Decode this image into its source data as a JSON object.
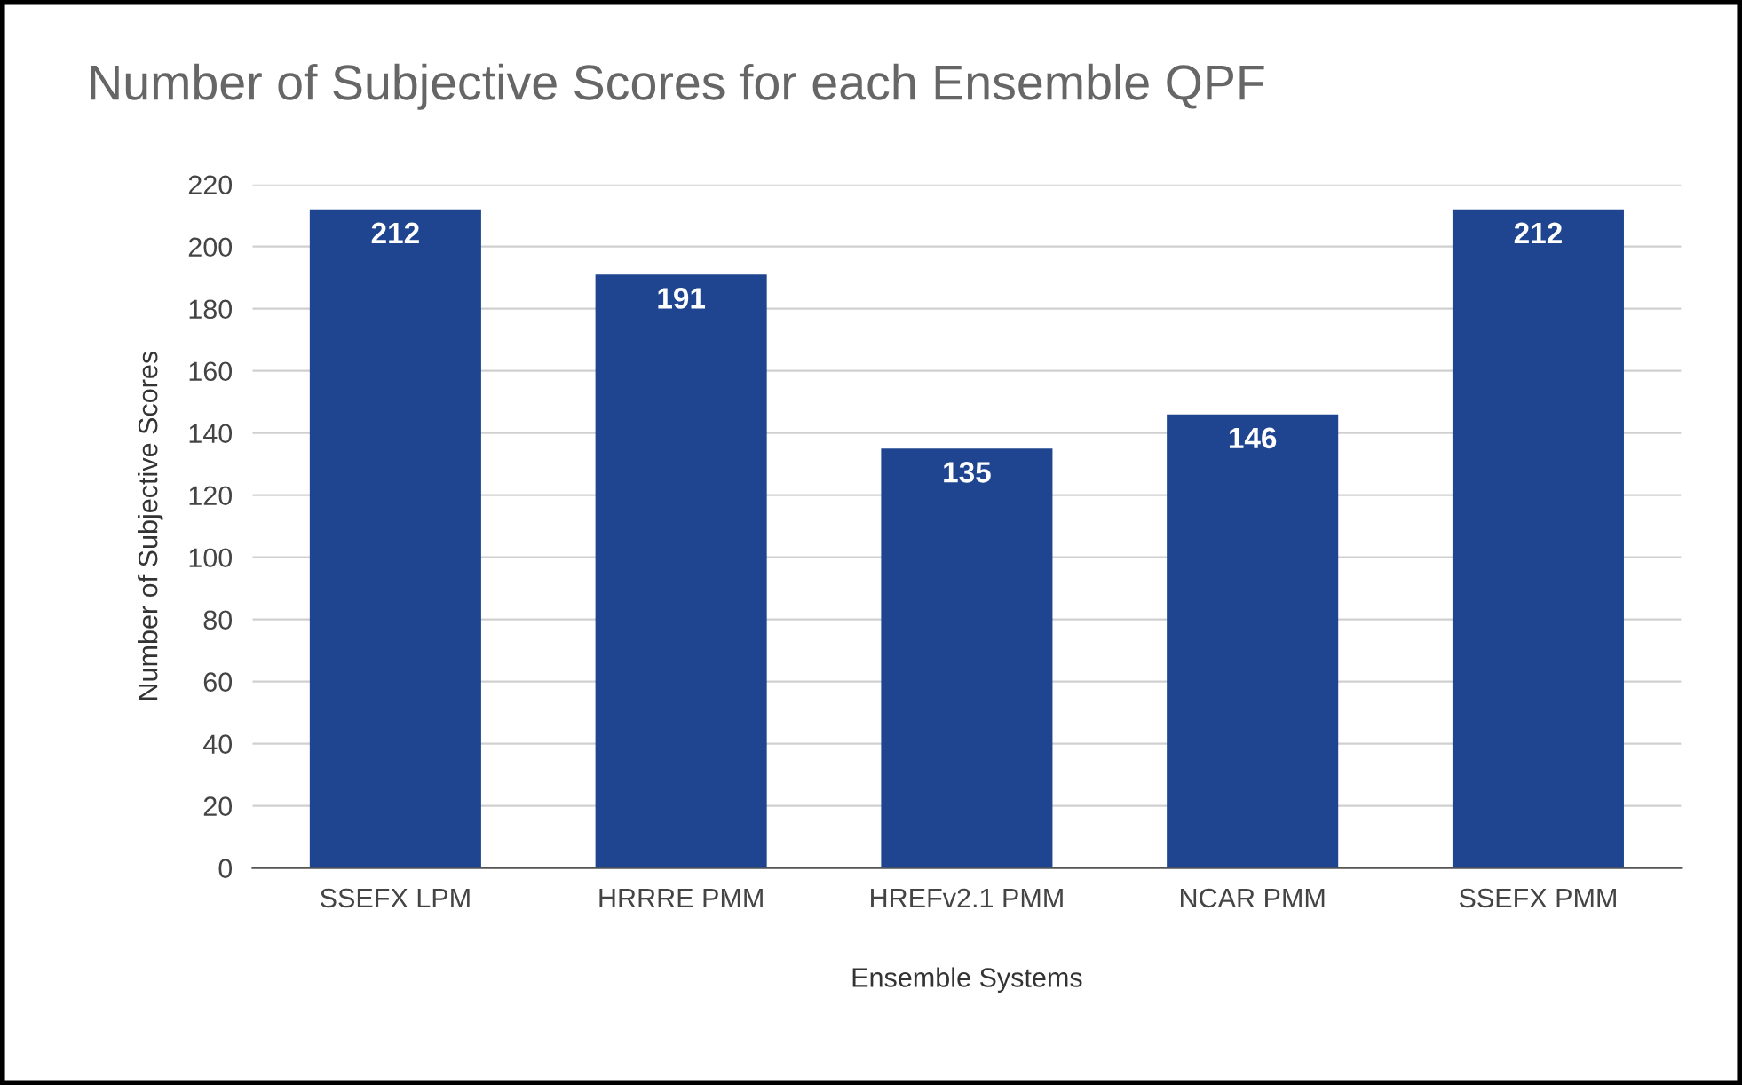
{
  "chart_data": {
    "type": "bar",
    "title": "Number of Subjective Scores for each Ensemble QPF",
    "xlabel": "Ensemble Systems",
    "ylabel": "Number of Subjective Scores",
    "categories": [
      "SSEFX LPM",
      "HRRRE PMM",
      "HREFv2.1 PMM",
      "NCAR PMM",
      "SSEFX PMM"
    ],
    "values": [
      212,
      191,
      135,
      146,
      212
    ],
    "color": "#1f4591",
    "data_labels": true,
    "ylim": [
      0,
      220
    ],
    "yticks": [
      0,
      20,
      40,
      60,
      80,
      100,
      120,
      140,
      160,
      180,
      200,
      220
    ],
    "grid": "y",
    "legend": false
  }
}
